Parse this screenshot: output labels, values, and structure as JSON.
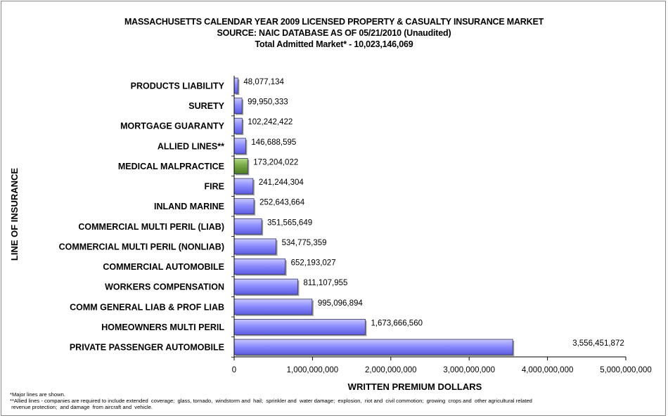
{
  "chart_data": {
    "type": "bar",
    "orientation": "horizontal",
    "title": "MASSACHUSETTS CALENDAR YEAR 2009 LICENSED PROPERTY & CASUALTY INSURANCE MARKET",
    "subtitle": "SOURCE: NAIC DATABASE AS OF 05/21/2010 (Unaudited)",
    "subtitle2": "Total Admitted Market* - 10,023,146,069",
    "xlabel": "WRITTEN PREMIUM DOLLARS",
    "ylabel": "LINE OF INSURANCE",
    "xlim": [
      0,
      5000000000
    ],
    "xticks": [
      0,
      1000000000,
      2000000000,
      3000000000,
      4000000000,
      5000000000
    ],
    "xtick_labels": [
      "0",
      "1,000,000,000",
      "2,000,000,000",
      "3,000,000,000",
      "4,000,000,000",
      "5,000,000,000"
    ],
    "grid": false,
    "categories": [
      "PRODUCTS LIABILITY",
      "SURETY",
      "MORTGAGE GUARANTY",
      "ALLIED LINES**",
      "MEDICAL MALPRACTICE",
      "FIRE",
      "INLAND MARINE",
      "COMMERCIAL MULTI PERIL (LIAB)",
      "COMMERCIAL MULTI PERIL (NONLIAB)",
      "COMMERCIAL AUTOMOBILE",
      "WORKERS COMPENSATION",
      "COMM GENERAL LIAB & PROF LIAB",
      "HOMEOWNERS MULTI PERIL",
      "PRIVATE PASSENGER AUTOMOBILE"
    ],
    "values": [
      48077134,
      99950333,
      102242422,
      146688595,
      173204022,
      241244304,
      252643664,
      351565649,
      534775359,
      652193027,
      811107955,
      995096894,
      1673666560,
      3556451872
    ],
    "value_labels": [
      "48,077,134",
      "99,950,333",
      "102,242,422",
      "146,688,595",
      "173,204,022",
      "241,244,304",
      "252,643,664",
      "351,565,649",
      "534,775,359",
      "652,193,027",
      "811,107,955",
      "995,096,894",
      "1,673,666,560",
      "3,556,451,872"
    ],
    "bar_colors": [
      "#8080ff",
      "#8080ff",
      "#8080ff",
      "#8080ff",
      "#669933",
      "#8080ff",
      "#8080ff",
      "#8080ff",
      "#8080ff",
      "#8080ff",
      "#8080ff",
      "#8080ff",
      "#8080ff",
      "#8080ff"
    ]
  },
  "footnotes": {
    "line1": "*Major lines are shown.",
    "line2": "**Allied lines - companies are required to include extended  coverage;  glass, tornado,  windstorm and  hail;  sprinkler and  water damage;  explosion,  riot and  civil commotion;  growing  crops and  other agricultural related",
    "line3": " revenue protection;  and damage  from aircraft and  vehicle."
  }
}
